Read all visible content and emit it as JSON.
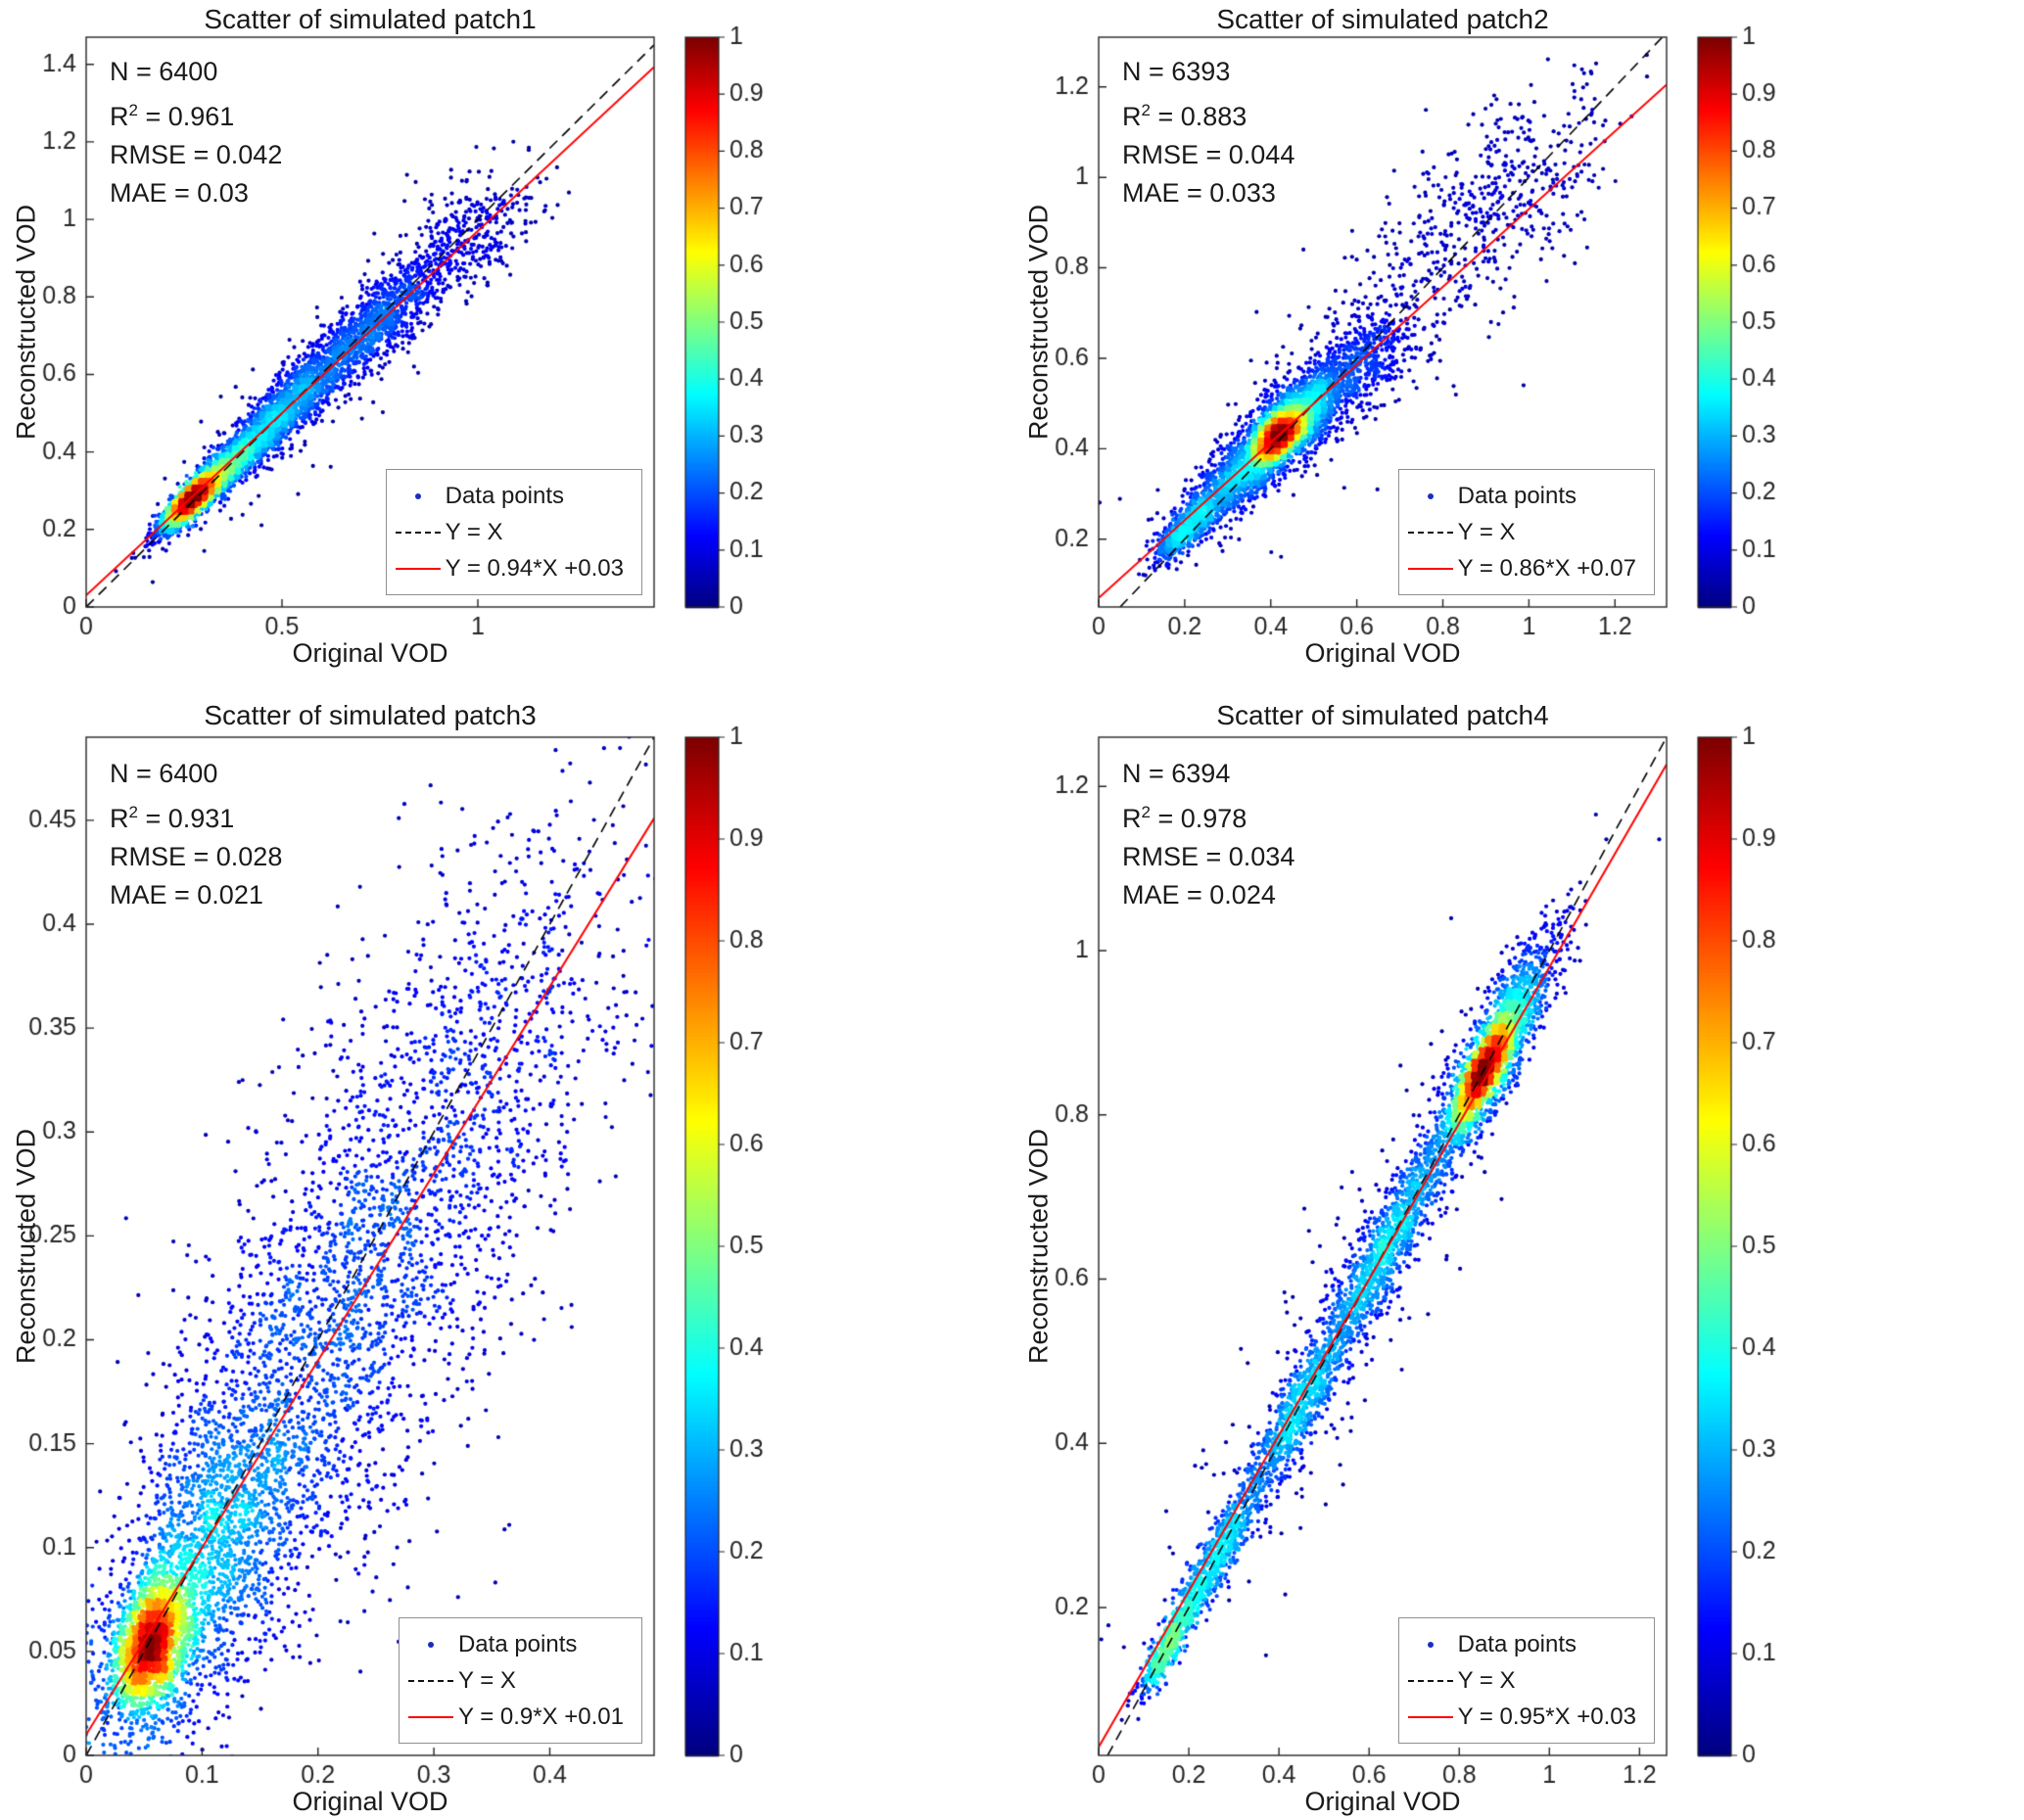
{
  "figure": {
    "background": "#ffffff"
  },
  "colors": {
    "fit_line": "#ff0000",
    "identity_line": "#000000",
    "legend_point": "#1a2dbf",
    "axis_text": "#262626",
    "jet_stops": [
      "#00008f",
      "#0000ff",
      "#00ffff",
      "#ffff00",
      "#ff0000",
      "#800000"
    ]
  },
  "chart_data": [
    {
      "id": "patch1",
      "type": "scatter",
      "title": "Scatter of simulated patch1",
      "xlabel": "Original VOD",
      "ylabel": "Reconstructed VOD",
      "stats": {
        "n": "N = 6400",
        "r2_base": "R",
        "r2_sup": "2",
        "r2_rest": " = 0.961",
        "rmse": "RMSE = 0.042",
        "mae": "MAE = 0.03",
        "n_value": 6400,
        "r2_value": 0.961,
        "rmse_value": 0.042,
        "mae_value": 0.03
      },
      "legend": {
        "data_points": "Data points",
        "identity": "Y = X",
        "fit": "Y = 0.94*X +0.03"
      },
      "fit": {
        "slope": 0.94,
        "intercept": 0.03
      },
      "axes": {
        "xlim": [
          0,
          1.45
        ],
        "ylim": [
          0,
          1.47
        ],
        "xticks": [
          0,
          0.5,
          1
        ],
        "xtick_labels": [
          "0",
          "0.5",
          "1"
        ],
        "yticks": [
          0,
          0.2,
          0.4,
          0.6,
          0.8,
          1,
          1.2,
          1.4
        ],
        "ytick_labels": [
          "0",
          "0.2",
          "0.4",
          "0.6",
          "0.8",
          "1",
          "1.2",
          "1.4"
        ],
        "grid": false
      },
      "colorbar": {
        "colormap": "jet",
        "range": [
          0,
          1
        ],
        "tick_values": [
          0,
          0.1,
          0.2,
          0.3,
          0.4,
          0.5,
          0.6,
          0.7,
          0.8,
          0.9,
          1
        ],
        "tick_labels": [
          "0",
          "0.1",
          "0.2",
          "0.3",
          "0.4",
          "0.5",
          "0.6",
          "0.7",
          "0.8",
          "0.9",
          "1"
        ]
      },
      "points": {
        "n": 6400,
        "seed": 101,
        "clusters": [
          {
            "x": 0.27,
            "y": 0.28,
            "a": 0.05,
            "p": 0.013,
            "w": 0.3
          },
          {
            "x": 0.33,
            "y": 0.33,
            "a": 0.1,
            "p": 0.02,
            "w": 0.25
          },
          {
            "x": 0.5,
            "y": 0.5,
            "a": 0.13,
            "p": 0.03,
            "w": 0.22
          },
          {
            "x": 0.72,
            "y": 0.71,
            "a": 0.13,
            "p": 0.04,
            "w": 0.15
          },
          {
            "x": 0.95,
            "y": 0.93,
            "a": 0.13,
            "p": 0.055,
            "w": 0.06
          },
          {
            "x": 0.6,
            "y": 0.6,
            "a": 0.3,
            "p": 0.08,
            "w": 0.02
          }
        ]
      }
    },
    {
      "id": "patch2",
      "type": "scatter",
      "title": "Scatter of simulated patch2",
      "xlabel": "Original VOD",
      "ylabel": "Reconstructed VOD",
      "stats": {
        "n": "N = 6393",
        "r2_base": "R",
        "r2_sup": "2",
        "r2_rest": " = 0.883",
        "rmse": "RMSE = 0.044",
        "mae": "MAE = 0.033",
        "n_value": 6393,
        "r2_value": 0.883,
        "rmse_value": 0.044,
        "mae_value": 0.033
      },
      "legend": {
        "data_points": "Data points",
        "identity": "Y = X",
        "fit": "Y = 0.86*X +0.07"
      },
      "fit": {
        "slope": 0.86,
        "intercept": 0.07
      },
      "axes": {
        "xlim": [
          0,
          1.32
        ],
        "ylim": [
          0.05,
          1.31
        ],
        "xticks": [
          0,
          0.2,
          0.4,
          0.6,
          0.8,
          1,
          1.2
        ],
        "xtick_labels": [
          "0",
          "0.2",
          "0.4",
          "0.6",
          "0.8",
          "1",
          "1.2"
        ],
        "yticks": [
          0.2,
          0.4,
          0.6,
          0.8,
          1,
          1.2
        ],
        "ytick_labels": [
          "0.2",
          "0.4",
          "0.6",
          "0.8",
          "1",
          "1.2"
        ],
        "grid": false
      },
      "colorbar": {
        "colormap": "jet",
        "range": [
          0,
          1
        ],
        "tick_values": [
          0,
          0.1,
          0.2,
          0.3,
          0.4,
          0.5,
          0.6,
          0.7,
          0.8,
          0.9,
          1
        ],
        "tick_labels": [
          "0",
          "0.1",
          "0.2",
          "0.3",
          "0.4",
          "0.5",
          "0.6",
          "0.7",
          "0.8",
          "0.9",
          "1"
        ]
      },
      "points": {
        "n": 6393,
        "seed": 202,
        "clusters": [
          {
            "x": 0.42,
            "y": 0.43,
            "a": 0.035,
            "p": 0.018,
            "w": 0.28
          },
          {
            "x": 0.44,
            "y": 0.45,
            "a": 0.09,
            "p": 0.035,
            "w": 0.34
          },
          {
            "x": 0.3,
            "y": 0.32,
            "a": 0.07,
            "p": 0.03,
            "w": 0.12
          },
          {
            "x": 0.2,
            "y": 0.22,
            "a": 0.05,
            "p": 0.018,
            "w": 0.08
          },
          {
            "x": 0.6,
            "y": 0.58,
            "a": 0.08,
            "p": 0.045,
            "w": 0.08
          },
          {
            "x": 0.9,
            "y": 0.93,
            "a": 0.18,
            "p": 0.085,
            "w": 0.08
          },
          {
            "x": 0.55,
            "y": 0.55,
            "a": 0.28,
            "p": 0.1,
            "w": 0.02
          }
        ]
      }
    },
    {
      "id": "patch3",
      "type": "scatter",
      "title": "Scatter of simulated patch3",
      "xlabel": "Original VOD",
      "ylabel": "Reconstructed VOD",
      "stats": {
        "n": "N = 6400",
        "r2_base": "R",
        "r2_sup": "2",
        "r2_rest": " = 0.931",
        "rmse": "RMSE = 0.028",
        "mae": "MAE = 0.021",
        "n_value": 6400,
        "r2_value": 0.931,
        "rmse_value": 0.028,
        "mae_value": 0.021
      },
      "legend": {
        "data_points": "Data points",
        "identity": "Y = X",
        "fit": "Y = 0.9*X +0.01"
      },
      "fit": {
        "slope": 0.9,
        "intercept": 0.01
      },
      "axes": {
        "xlim": [
          0,
          0.49
        ],
        "ylim": [
          0,
          0.49
        ],
        "xticks": [
          0,
          0.1,
          0.2,
          0.3,
          0.4
        ],
        "xtick_labels": [
          "0",
          "0.1",
          "0.2",
          "0.3",
          "0.4"
        ],
        "yticks": [
          0,
          0.05,
          0.1,
          0.15,
          0.2,
          0.25,
          0.3,
          0.35,
          0.4,
          0.45
        ],
        "ytick_labels": [
          "0",
          "0.05",
          "0.1",
          "0.15",
          "0.2",
          "0.25",
          "0.3",
          "0.35",
          "0.4",
          "0.45"
        ],
        "grid": false
      },
      "colorbar": {
        "colormap": "jet",
        "range": [
          0,
          1
        ],
        "tick_values": [
          0,
          0.1,
          0.2,
          0.3,
          0.4,
          0.5,
          0.6,
          0.7,
          0.8,
          0.9,
          1
        ],
        "tick_labels": [
          "0",
          "0.1",
          "0.2",
          "0.3",
          "0.4",
          "0.5",
          "0.6",
          "0.7",
          "0.8",
          "0.9",
          "1"
        ]
      },
      "points": {
        "n": 6400,
        "seed": 303,
        "clusters": [
          {
            "x": 0.055,
            "y": 0.053,
            "a": 0.018,
            "p": 0.012,
            "w": 0.25
          },
          {
            "x": 0.08,
            "y": 0.075,
            "a": 0.05,
            "p": 0.025,
            "w": 0.22
          },
          {
            "x": 0.15,
            "y": 0.14,
            "a": 0.07,
            "p": 0.04,
            "w": 0.22
          },
          {
            "x": 0.25,
            "y": 0.24,
            "a": 0.08,
            "p": 0.05,
            "w": 0.18
          },
          {
            "x": 0.35,
            "y": 0.34,
            "a": 0.08,
            "p": 0.05,
            "w": 0.11
          },
          {
            "x": 0.2,
            "y": 0.2,
            "a": 0.12,
            "p": 0.07,
            "w": 0.02
          }
        ]
      }
    },
    {
      "id": "patch4",
      "type": "scatter",
      "title": "Scatter of simulated patch4",
      "xlabel": "Original VOD",
      "ylabel": "Reconstructed VOD",
      "stats": {
        "n": "N = 6394",
        "r2_base": "R",
        "r2_sup": "2",
        "r2_rest": " = 0.978",
        "rmse": "RMSE = 0.034",
        "mae": "MAE = 0.024",
        "n_value": 6394,
        "r2_value": 0.978,
        "rmse_value": 0.034,
        "mae_value": 0.024
      },
      "legend": {
        "data_points": "Data points",
        "identity": "Y = X",
        "fit": "Y = 0.95*X +0.03"
      },
      "fit": {
        "slope": 0.95,
        "intercept": 0.03
      },
      "axes": {
        "xlim": [
          0,
          1.26
        ],
        "ylim": [
          0.02,
          1.26
        ],
        "xticks": [
          0,
          0.2,
          0.4,
          0.6,
          0.8,
          1,
          1.2
        ],
        "xtick_labels": [
          "0",
          "0.2",
          "0.4",
          "0.6",
          "0.8",
          "1",
          "1.2"
        ],
        "yticks": [
          0.2,
          0.4,
          0.6,
          0.8,
          1,
          1.2
        ],
        "ytick_labels": [
          "0.2",
          "0.4",
          "0.6",
          "0.8",
          "1",
          "1.2"
        ],
        "grid": false
      },
      "colorbar": {
        "colormap": "jet",
        "range": [
          0,
          1
        ],
        "tick_values": [
          0,
          0.1,
          0.2,
          0.3,
          0.4,
          0.5,
          0.6,
          0.7,
          0.8,
          0.9,
          1
        ],
        "tick_labels": [
          "0",
          "0.1",
          "0.2",
          "0.3",
          "0.4",
          "0.5",
          "0.6",
          "0.7",
          "0.8",
          "0.9",
          "1"
        ]
      },
      "points": {
        "n": 6394,
        "seed": 404,
        "clusters": [
          {
            "x": 0.85,
            "y": 0.85,
            "a": 0.045,
            "p": 0.012,
            "w": 0.22
          },
          {
            "x": 0.88,
            "y": 0.88,
            "a": 0.09,
            "p": 0.025,
            "w": 0.26
          },
          {
            "x": 0.65,
            "y": 0.65,
            "a": 0.1,
            "p": 0.022,
            "w": 0.16
          },
          {
            "x": 0.45,
            "y": 0.45,
            "a": 0.1,
            "p": 0.02,
            "w": 0.14
          },
          {
            "x": 0.25,
            "y": 0.25,
            "a": 0.08,
            "p": 0.015,
            "w": 0.12
          },
          {
            "x": 0.15,
            "y": 0.15,
            "a": 0.04,
            "p": 0.01,
            "w": 0.06
          },
          {
            "x": 0.55,
            "y": 0.55,
            "a": 0.3,
            "p": 0.06,
            "w": 0.04
          }
        ]
      }
    }
  ]
}
